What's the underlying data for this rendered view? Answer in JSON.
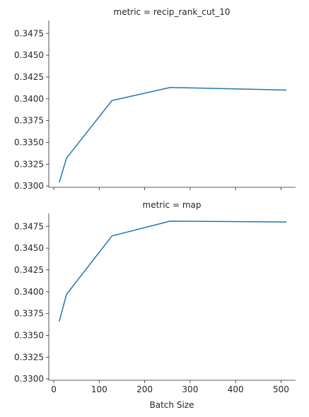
{
  "xlabel": "Batch Size",
  "line_color": "#1f77b4",
  "x_ticks": [
    0,
    100,
    200,
    300,
    400,
    500
  ],
  "y_ticks": [
    0.33,
    0.3325,
    0.335,
    0.3375,
    0.34,
    0.3425,
    0.345,
    0.3475
  ],
  "chart_data": [
    {
      "type": "line",
      "title": "metric = recip_rank_cut_10",
      "xlabel": "",
      "ylabel": "",
      "xlim": [
        -11,
        532
      ],
      "ylim": [
        0.32985,
        0.34898
      ],
      "series": [
        {
          "x": [
            12,
            28,
            128,
            256,
            512
          ],
          "y": [
            0.3304,
            0.3332,
            0.3398,
            0.3413,
            0.341
          ]
        }
      ],
      "grid": false,
      "legend": "none"
    },
    {
      "type": "line",
      "title": "metric = map",
      "xlabel": "Batch Size",
      "ylabel": "",
      "xlim": [
        -11,
        532
      ],
      "ylim": [
        0.32985,
        0.34898
      ],
      "series": [
        {
          "x": [
            12,
            28,
            128,
            256,
            512
          ],
          "y": [
            0.3366,
            0.3397,
            0.3464,
            0.3481,
            0.348
          ]
        }
      ],
      "grid": false,
      "legend": "none"
    }
  ]
}
